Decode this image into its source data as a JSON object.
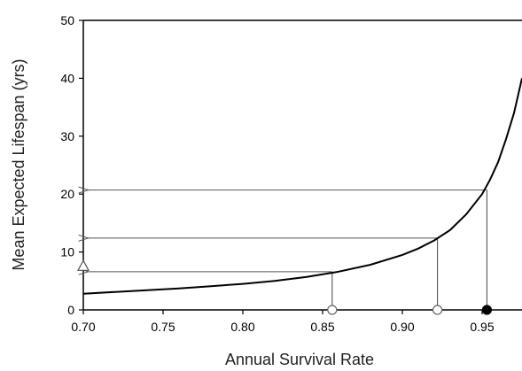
{
  "chart_data": {
    "type": "line",
    "title": "",
    "xlabel": "Annual Survival Rate",
    "ylabel": "Mean Expected Lifespan (yrs)",
    "xlim": [
      0.7,
      0.975
    ],
    "ylim": [
      0,
      50
    ],
    "x_ticks": [
      0.7,
      0.75,
      0.8,
      0.85,
      0.9,
      0.95
    ],
    "x_tick_labels": [
      "0.70",
      "0.75",
      "0.80",
      "0.85",
      "0.90",
      "0.95"
    ],
    "y_ticks": [
      0,
      10,
      20,
      30,
      40,
      50
    ],
    "y_tick_labels": [
      "0",
      "10",
      "20",
      "30",
      "40",
      "50"
    ],
    "grid": false,
    "curve": {
      "x": [
        0.7,
        0.72,
        0.74,
        0.76,
        0.78,
        0.8,
        0.82,
        0.84,
        0.86,
        0.88,
        0.9,
        0.91,
        0.92,
        0.93,
        0.94,
        0.95,
        0.955,
        0.96,
        0.965,
        0.97,
        0.975
      ],
      "y": [
        2.8,
        3.1,
        3.4,
        3.7,
        4.1,
        4.5,
        5.0,
        5.7,
        6.6,
        7.8,
        9.5,
        10.6,
        12.0,
        13.8,
        16.5,
        20.0,
        22.5,
        25.5,
        29.5,
        34.0,
        40.0
      ]
    },
    "markers": [
      {
        "x": 0.856,
        "y": 6.6,
        "symbol": "open-circle"
      },
      {
        "x": 0.922,
        "y": 12.4,
        "symbol": "open-circle"
      },
      {
        "x": 0.953,
        "y": 20.7,
        "symbol": "filled-circle"
      }
    ],
    "start_marker": {
      "x": 0.7,
      "y": 7.6,
      "symbol": "open-triangle"
    },
    "arrow_end_x": 0.702
  }
}
